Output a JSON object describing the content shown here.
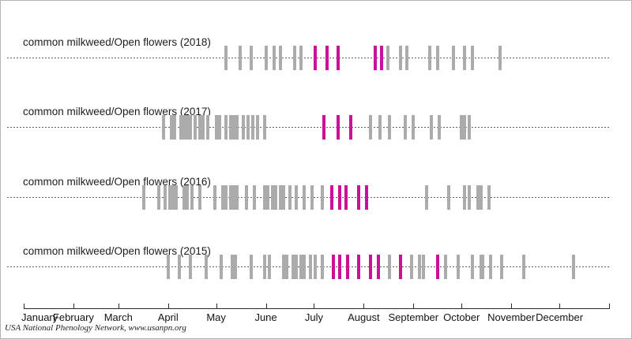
{
  "footer": {
    "attribution": "USA National Phenology Network, www.usanpn.org"
  },
  "chart_data": {
    "type": "timeline",
    "description": "Phenology calendar: vertical tick marks for observation dates along a year axis, one dotted timeline per year",
    "x_unit": "day_of_year",
    "x_axis": {
      "months": [
        "January",
        "February",
        "March",
        "April",
        "May",
        "June",
        "July",
        "August",
        "September",
        "October",
        "November",
        "December"
      ],
      "month_start_days": [
        0,
        31,
        59,
        90,
        120,
        151,
        181,
        212,
        243,
        273,
        304,
        334
      ],
      "total_days": 365,
      "end_tick": true
    },
    "colors": {
      "tick_gray": "#ababab",
      "tick_magenta": "#cc1199"
    },
    "rows": [
      {
        "label": "common milkweed/Open flowers (2018)",
        "ticks_gray": [
          126,
          135,
          142,
          151,
          156,
          160,
          169,
          173,
          227,
          235,
          239,
          253,
          258,
          268,
          275,
          280,
          297
        ],
        "ticks_magenta": [
          182,
          189,
          196,
          219,
          223
        ]
      },
      {
        "label": "common milkweed/Open flowers (2017)",
        "ticks_gray": [
          87,
          92,
          94,
          98,
          100,
          102,
          104,
          107,
          110,
          112,
          115,
          120,
          122,
          126,
          129,
          131,
          133,
          137,
          140,
          143,
          146,
          150,
          216,
          222,
          228,
          238,
          243,
          254,
          259,
          273,
          275,
          278
        ],
        "ticks_magenta": [
          187,
          196,
          204
        ]
      },
      {
        "label": "common milkweed/Open flowers (2016)",
        "ticks_gray": [
          75,
          84,
          88,
          91,
          93,
          95,
          100,
          102,
          105,
          110,
          119,
          124,
          126,
          129,
          131,
          133,
          139,
          144,
          150,
          152,
          155,
          157,
          160,
          162,
          166,
          170,
          175,
          180,
          186,
          251,
          265,
          275,
          278,
          283,
          285,
          290
        ],
        "ticks_magenta": [
          192,
          197,
          201,
          209,
          214
        ]
      },
      {
        "label": "common milkweed/Open flowers (2015)",
        "ticks_gray": [
          90,
          97,
          104,
          114,
          123,
          130,
          132,
          142,
          150,
          153,
          162,
          164,
          168,
          170,
          173,
          175,
          179,
          182,
          186,
          228,
          242,
          247,
          249,
          263,
          271,
          280,
          285,
          286,
          291,
          298,
          312,
          343
        ],
        "ticks_magenta": [
          193,
          197,
          202,
          209,
          216,
          221,
          235,
          258
        ]
      }
    ]
  }
}
